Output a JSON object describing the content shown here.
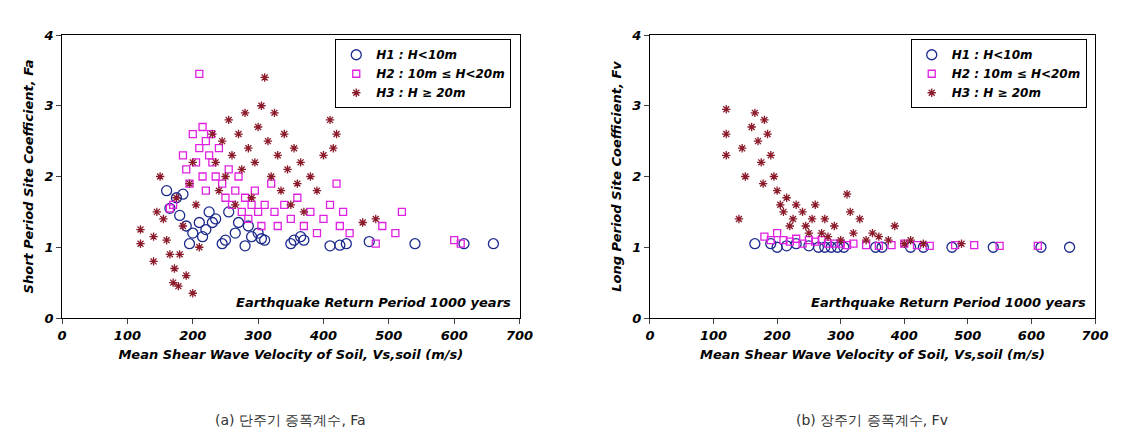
{
  "chart_data": [
    {
      "type": "scatter",
      "subtitle": "(a) 단주기 증폭계수, Fa",
      "x_label": "Mean Shear Wave Velocity of Soil, Vs,soil (m/s)",
      "y_label": "Short Period Site Coefficient, Fa",
      "annotations": [
        "Earthquake Return Period 1000 years"
      ],
      "xlim": [
        0,
        700
      ],
      "xticks": [
        0,
        100,
        200,
        300,
        400,
        500,
        600,
        700
      ],
      "ylim": [
        0,
        4
      ],
      "yticks": [
        0,
        1,
        2,
        3,
        4
      ],
      "grid": false,
      "legend": "upper right",
      "series": [
        {
          "name": "H1 : H<10m",
          "color": "#1c2a8c",
          "marker": "circle-open",
          "x": [
            160,
            165,
            175,
            180,
            185,
            190,
            195,
            200,
            210,
            215,
            220,
            225,
            230,
            235,
            245,
            250,
            255,
            265,
            270,
            280,
            285,
            290,
            300,
            305,
            310,
            350,
            355,
            365,
            370,
            410,
            425,
            435,
            470,
            540,
            615,
            660
          ],
          "values": [
            1.8,
            1.55,
            1.7,
            1.45,
            1.75,
            1.3,
            1.05,
            1.2,
            1.35,
            1.15,
            1.25,
            1.5,
            1.35,
            1.4,
            1.05,
            1.1,
            1.5,
            1.2,
            1.35,
            1.02,
            1.3,
            1.15,
            1.2,
            1.12,
            1.1,
            1.05,
            1.1,
            1.15,
            1.1,
            1.02,
            1.03,
            1.05,
            1.08,
            1.05,
            1.05,
            1.05
          ]
        },
        {
          "name": "H2 : 10m ≤ H<20m",
          "color": "#e020e0",
          "marker": "square-open",
          "x": [
            165,
            170,
            185,
            190,
            195,
            200,
            205,
            210,
            210,
            215,
            215,
            220,
            220,
            225,
            228,
            230,
            235,
            240,
            245,
            250,
            255,
            260,
            265,
            270,
            275,
            280,
            285,
            290,
            295,
            300,
            305,
            310,
            320,
            325,
            330,
            340,
            350,
            360,
            370,
            380,
            390,
            400,
            410,
            420,
            425,
            430,
            440,
            480,
            490,
            510,
            520,
            600,
            610
          ],
          "values": [
            1.55,
            1.6,
            2.3,
            2.1,
            1.9,
            2.6,
            2.2,
            3.45,
            2.4,
            2.0,
            2.7,
            1.8,
            2.5,
            2.3,
            2.6,
            2.2,
            2.0,
            2.4,
            1.9,
            1.7,
            2.1,
            1.6,
            1.8,
            2.0,
            1.5,
            1.7,
            1.4,
            1.6,
            1.8,
            1.5,
            1.3,
            1.6,
            1.9,
            1.5,
            1.3,
            1.6,
            1.4,
            1.7,
            1.3,
            1.5,
            1.2,
            1.4,
            1.6,
            1.9,
            1.3,
            1.5,
            1.2,
            1.05,
            1.3,
            1.2,
            1.5,
            1.1,
            1.05
          ]
        },
        {
          "name": "H3 : H ≥ 20m",
          "color": "#8b1a2a",
          "marker": "asterisk-open",
          "x": [
            120,
            120,
            140,
            140,
            145,
            150,
            155,
            160,
            165,
            170,
            172,
            175,
            178,
            180,
            185,
            190,
            195,
            200,
            200,
            205,
            210,
            230,
            235,
            240,
            245,
            250,
            255,
            260,
            265,
            270,
            275,
            280,
            285,
            290,
            295,
            300,
            305,
            310,
            315,
            320,
            325,
            330,
            335,
            340,
            345,
            350,
            355,
            360,
            365,
            370,
            380,
            390,
            400,
            410,
            415,
            420,
            460,
            480
          ],
          "values": [
            1.25,
            1.05,
            0.8,
            1.15,
            1.5,
            2.0,
            1.4,
            1.1,
            0.9,
            0.5,
            0.7,
            1.7,
            0.45,
            0.9,
            1.3,
            0.6,
            1.9,
            0.35,
            2.2,
            1.6,
            1.0,
            2.6,
            2.2,
            1.8,
            2.5,
            2.0,
            2.8,
            2.3,
            1.6,
            2.6,
            2.1,
            2.9,
            2.4,
            1.7,
            2.2,
            2.7,
            3.0,
            3.4,
            2.5,
            2.0,
            2.9,
            2.3,
            1.8,
            2.6,
            2.1,
            1.6,
            2.4,
            1.9,
            2.2,
            1.5,
            2.0,
            1.8,
            2.3,
            2.8,
            2.4,
            2.6,
            1.35,
            1.4
          ]
        }
      ]
    },
    {
      "type": "scatter",
      "subtitle": "(b) 장주기 증폭계수, Fv",
      "x_label": "Mean Shear Wave Velocity of Soil, Vs,soil (m/s)",
      "y_label": "Long Period Site Coefficient, Fv",
      "annotations": [
        "Earthquake Return Period 1000 years"
      ],
      "xlim": [
        0,
        700
      ],
      "xticks": [
        0,
        100,
        200,
        300,
        400,
        500,
        600,
        700
      ],
      "ylim": [
        0,
        4
      ],
      "yticks": [
        0,
        1,
        2,
        3,
        4
      ],
      "grid": false,
      "legend": "upper right",
      "series": [
        {
          "name": "H1 : H<10m",
          "color": "#1c2a8c",
          "marker": "circle-open",
          "x": [
            165,
            190,
            200,
            215,
            230,
            250,
            265,
            275,
            285,
            295,
            305,
            355,
            365,
            410,
            430,
            475,
            540,
            615,
            660
          ],
          "values": [
            1.05,
            1.05,
            1.0,
            1.02,
            1.05,
            1.02,
            1.0,
            1.0,
            1.0,
            1.0,
            1.0,
            1.0,
            1.0,
            1.0,
            1.0,
            1.0,
            1.0,
            1.0,
            1.0
          ]
        },
        {
          "name": "H2 : 10m ≤ H<20m",
          "color": "#e020e0",
          "marker": "square-open",
          "x": [
            180,
            190,
            200,
            210,
            220,
            230,
            240,
            250,
            260,
            270,
            280,
            290,
            300,
            310,
            320,
            340,
            360,
            380,
            400,
            420,
            440,
            480,
            510,
            550,
            610
          ],
          "values": [
            1.15,
            1.1,
            1.2,
            1.1,
            1.08,
            1.12,
            1.05,
            1.1,
            1.08,
            1.1,
            1.05,
            1.05,
            1.05,
            1.03,
            1.05,
            1.03,
            1.02,
            1.03,
            1.05,
            1.03,
            1.02,
            1.03,
            1.03,
            1.02,
            1.02
          ]
        },
        {
          "name": "H3 : H ≥ 20m",
          "color": "#8b1a2a",
          "marker": "asterisk-open",
          "x": [
            120,
            120,
            120,
            140,
            145,
            150,
            160,
            165,
            170,
            175,
            178,
            180,
            185,
            190,
            195,
            200,
            205,
            210,
            215,
            220,
            225,
            230,
            240,
            245,
            250,
            255,
            260,
            270,
            275,
            280,
            290,
            300,
            310,
            315,
            320,
            330,
            340,
            350,
            360,
            375,
            385,
            400,
            410,
            430,
            490
          ],
          "values": [
            2.95,
            2.6,
            2.3,
            1.4,
            2.4,
            2.0,
            2.7,
            2.9,
            2.5,
            2.2,
            1.9,
            2.8,
            2.6,
            2.3,
            2.0,
            1.8,
            1.6,
            1.5,
            1.7,
            1.3,
            1.4,
            1.6,
            1.5,
            1.3,
            1.2,
            1.4,
            1.6,
            1.2,
            1.4,
            1.15,
            1.3,
            1.1,
            1.75,
            1.5,
            1.2,
            1.4,
            1.1,
            1.2,
            1.15,
            1.1,
            1.3,
            1.05,
            1.1,
            1.05,
            1.05
          ]
        }
      ]
    }
  ]
}
